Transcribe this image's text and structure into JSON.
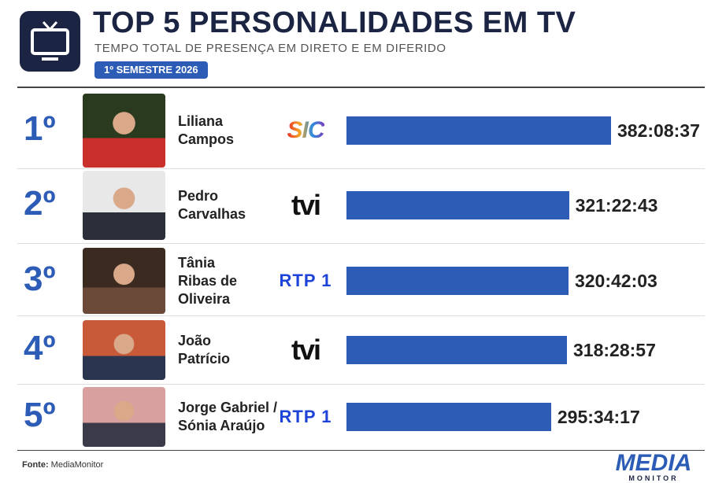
{
  "chart_data": {
    "type": "bar",
    "title": "TOP 5 PERSONALIDADES EM TV",
    "subtitle": "TEMPO TOTAL DE PRESENÇA EM DIRETO E EM DIFERIDO",
    "badge": "1º SEMESTRE 2026",
    "ranks": [
      "1º",
      "2º",
      "3º",
      "4º",
      "5º"
    ],
    "categories": [
      "Liliana\nCampos",
      "Pedro\nCarvalhas",
      "Tânia\nRibas de\nOliveira",
      "João\nPatrício",
      "Jorge Gabriel /\nSónia Araújo"
    ],
    "channels": [
      "SIC",
      "tvi",
      "RTP 1",
      "tvi",
      "RTP 1"
    ],
    "values": [
      382.143611,
      321.378611,
      320.700833,
      318.4825,
      295.571389
    ],
    "value_labels": [
      "382:08:37",
      "321:22:43",
      "320:42:03",
      "318:28:57",
      "295:34:17"
    ],
    "color": "#2c5cb5",
    "source_label": "Fonte:",
    "source": "MediaMonitor",
    "logo": [
      "MEDIA",
      "MONITOR"
    ]
  }
}
